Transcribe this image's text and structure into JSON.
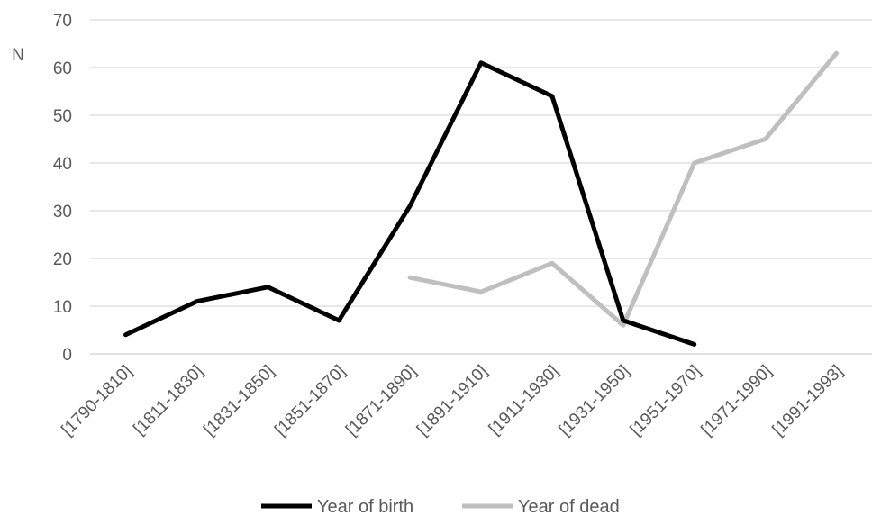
{
  "chart_data": {
    "type": "line",
    "ylabel": "N",
    "xlabel": "",
    "title": "",
    "ylim": [
      0,
      70
    ],
    "yticks": [
      0,
      10,
      20,
      30,
      40,
      50,
      60,
      70
    ],
    "grid": true,
    "legend_position": "bottom",
    "categories": [
      "[1790-1810]",
      "[1811-1830]",
      "[1831-1850]",
      "[1851-1870]",
      "[1871-1890]",
      "[1891-1910]",
      "[1911-1930]",
      "[1931-1950]",
      "[1951-1970]",
      "[1971-1990]",
      "[1991-1993]"
    ],
    "series": [
      {
        "name": "Year of birth",
        "color": "#000000",
        "values": [
          4,
          11,
          14,
          7,
          31,
          61,
          54,
          7,
          2,
          null,
          null
        ]
      },
      {
        "name": "Year of dead",
        "color": "#bfbfbf",
        "values": [
          null,
          null,
          null,
          null,
          16,
          13,
          19,
          6,
          40,
          45,
          63
        ]
      }
    ]
  }
}
